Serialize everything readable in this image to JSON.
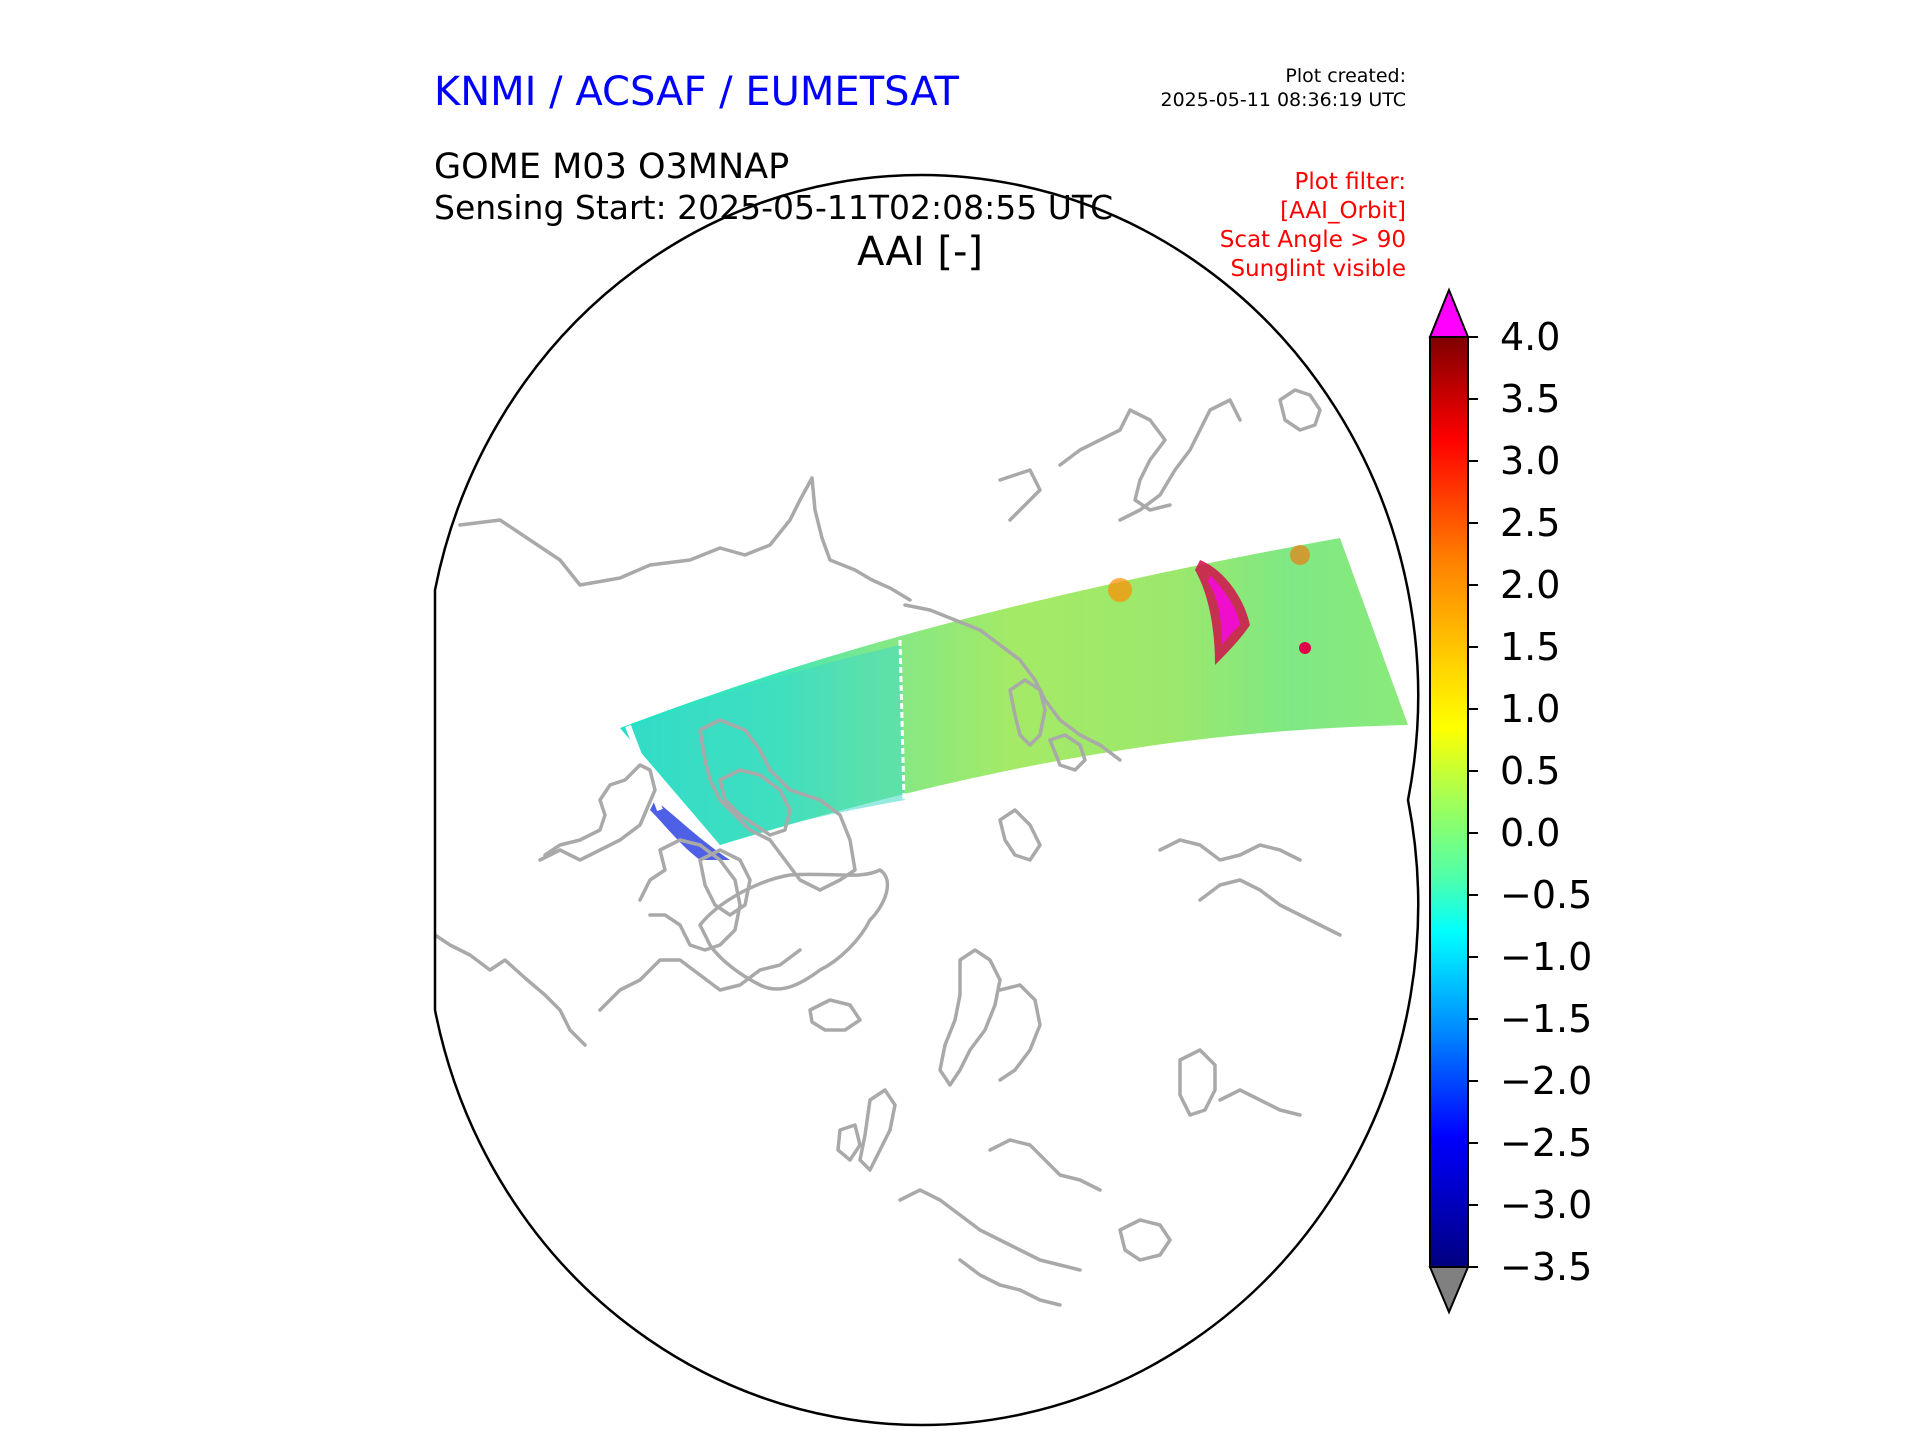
{
  "header": {
    "brand": "KNMI / ACSAF / EUMETSAT",
    "plot_created_label": "Plot created:",
    "plot_created_value": "2025-05-11 08:36:19 UTC",
    "product": "GOME M03 O3MNAP",
    "sensing_start": "Sensing Start: 2025-05-11T02:08:55 UTC",
    "variable": "AAI [-]"
  },
  "plot_filter": {
    "label": "Plot filter:",
    "lines": [
      "[AAI_Orbit]",
      "Scat Angle > 90",
      "Sunglint visible"
    ]
  },
  "colors": {
    "brand": "#0000ff",
    "filter": "#ff0000",
    "coastline": "#a9a9a9",
    "overflow_high": "#ff00ff",
    "overflow_low": "#808080"
  },
  "colorbar": {
    "min": -3.5,
    "max": 4.0,
    "ticks": [
      "4.0",
      "3.5",
      "3.0",
      "2.5",
      "2.0",
      "1.5",
      "1.0",
      "0.5",
      "0.0",
      "−0.5",
      "−1.0",
      "−1.5",
      "−2.0",
      "−2.5",
      "−3.0",
      "−3.5"
    ]
  }
}
